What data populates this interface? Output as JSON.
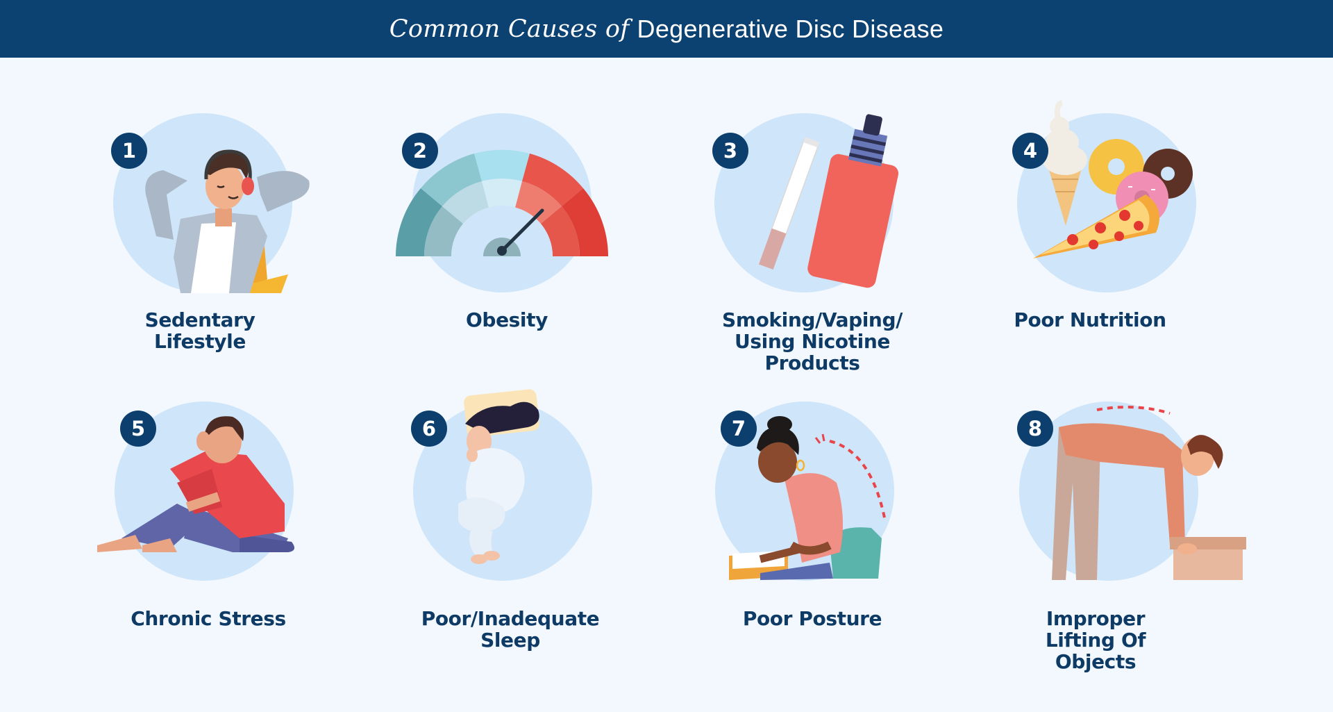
{
  "header": {
    "title_lead": "Common Causes of",
    "title_rest": "Degenerative Disc Disease",
    "background": "#0c4272"
  },
  "colors": {
    "circle": "#cfe5f9",
    "badge": "#0d3f6e",
    "label": "#0e3a66",
    "page": "#f2f8fd"
  },
  "causes": [
    {
      "number": "1",
      "label": "Sedentary Lifestyle",
      "icon": "person-reclining-with-headphones-icon"
    },
    {
      "number": "2",
      "label": "Obesity",
      "icon": "gauge-meter-icon"
    },
    {
      "number": "3",
      "label": "Smoking/Vaping/ Using Nicotine Products",
      "icon": "cigarette-and-vape-icon"
    },
    {
      "number": "4",
      "label": "Poor Nutrition",
      "icon": "junk-food-icon"
    },
    {
      "number": "5",
      "label": "Chronic Stress",
      "icon": "stressed-person-icon"
    },
    {
      "number": "6",
      "label": "Poor/Inadequate Sleep",
      "icon": "sleeping-person-icon"
    },
    {
      "number": "7",
      "label": "Poor Posture",
      "icon": "hunched-reader-icon"
    },
    {
      "number": "8",
      "label": "Improper Lifting Of Objects",
      "icon": "person-lifting-box-icon"
    }
  ]
}
